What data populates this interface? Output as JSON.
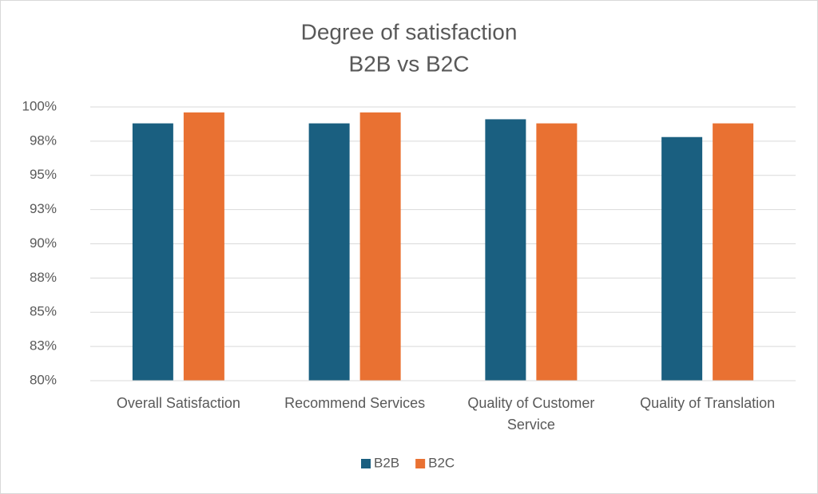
{
  "chart_data": {
    "type": "bar",
    "title": "Degree of satisfaction",
    "subtitle": "B2B vs B2C",
    "categories": [
      "Overall Satisfaction",
      "Recommend Services",
      "Quality of Customer Service",
      "Quality of Translation"
    ],
    "series": [
      {
        "name": "B2B",
        "color": "#1a5f80",
        "values": [
          98.8,
          98.8,
          99.1,
          97.8
        ]
      },
      {
        "name": "B2C",
        "color": "#e97132",
        "values": [
          99.6,
          99.6,
          98.8,
          98.8
        ]
      }
    ],
    "ylim": [
      80,
      100
    ],
    "yticks": [
      {
        "value": 80,
        "label": "80%"
      },
      {
        "value": 82.5,
        "label": "83%"
      },
      {
        "value": 85,
        "label": "85%"
      },
      {
        "value": 87.5,
        "label": "88%"
      },
      {
        "value": 90,
        "label": "90%"
      },
      {
        "value": 92.5,
        "label": "93%"
      },
      {
        "value": 95,
        "label": "95%"
      },
      {
        "value": 97.5,
        "label": "98%"
      },
      {
        "value": 100,
        "label": "100%"
      }
    ],
    "grid": true,
    "legend": "bottom"
  }
}
